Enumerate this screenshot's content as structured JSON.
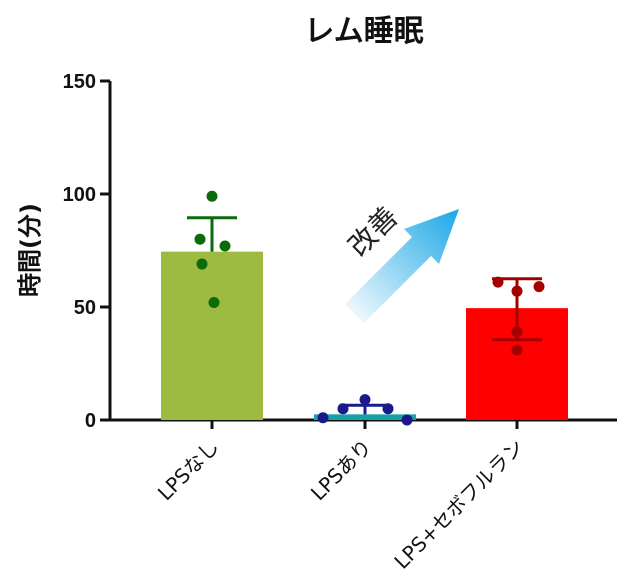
{
  "chart_data": {
    "type": "bar",
    "title": "レム睡眠",
    "ylabel": "時間(分)",
    "xlabel": "",
    "ylim": [
      0,
      150
    ],
    "yticks": [
      0,
      50,
      100,
      150
    ],
    "categories": [
      "LPSなし",
      "LPSあり",
      "LPS+セボフルラン"
    ],
    "values": [
      74.5,
      2.5,
      49.5
    ],
    "error_upper": [
      89.5,
      6.5,
      62.5
    ],
    "error_lower": [
      74.5,
      2.5,
      35.5
    ],
    "points": [
      [
        99,
        80,
        77,
        69,
        52
      ],
      [
        9,
        5,
        5,
        1,
        0
      ],
      [
        61,
        59,
        57,
        39,
        31
      ]
    ],
    "colors": {
      "bars": [
        "#9dbb41",
        "#17a2a6",
        "#ff0000"
      ],
      "points": [
        "#0b6b0b",
        "#1a1a8c",
        "#a50000"
      ],
      "errorbars": [
        "#0b6b0b",
        "#1a1a8c",
        "#a50000"
      ],
      "arrow_start": "#ffffff",
      "arrow_end": "#1aa7e6"
    },
    "annotation": "改善"
  }
}
